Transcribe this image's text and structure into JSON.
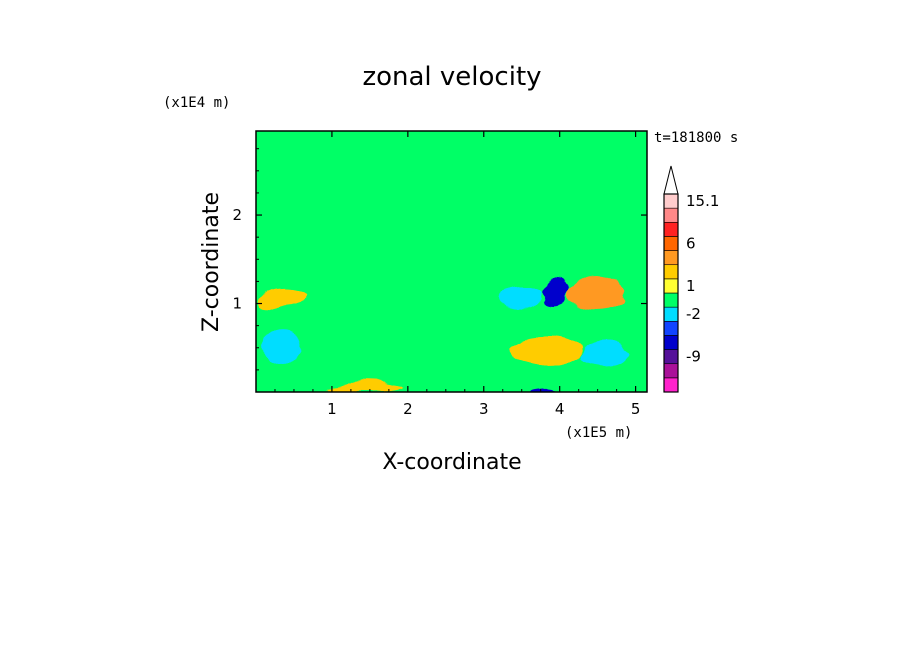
{
  "chart_data": {
    "type": "heatmap",
    "title": "zonal velocity",
    "xlabel": "X-coordinate",
    "ylabel": "Z-coordinate",
    "x_unit": "(x1E5 m)",
    "y_unit": "(x1E4 m)",
    "time_label": "t=181800 s",
    "xlim": [
      0,
      5.15
    ],
    "ylim": [
      0,
      2.95
    ],
    "x_ticks": [
      "1",
      "2",
      "3",
      "4",
      "5"
    ],
    "y_ticks": [
      "1",
      "2"
    ],
    "colorbar": {
      "labels": [
        "15.1",
        "6",
        "1",
        "-2",
        "-9"
      ],
      "colors": [
        "#ff22cc",
        "#aa1199",
        "#551199",
        "#0000cc",
        "#1144ff",
        "#00ddff",
        "#00ff66",
        "#ffff33",
        "#ffcc00",
        "#ff9922",
        "#ff6600",
        "#ff2222",
        "#ff8888",
        "#ffcccc"
      ],
      "extend": "max"
    },
    "features": [
      {
        "type": "band",
        "x": [
          0,
          5.15
        ],
        "z": [
          2.3,
          2.55
        ],
        "value": 0.5
      },
      {
        "type": "band",
        "x": [
          0,
          5.15
        ],
        "z": [
          1.55,
          1.95
        ],
        "value": 0.5
      },
      {
        "type": "band",
        "x": [
          0,
          3.2
        ],
        "z": [
          0.9,
          1.4
        ],
        "value": 0.5
      },
      {
        "type": "band",
        "x": [
          0,
          3.8
        ],
        "z": [
          0.25,
          0.75
        ],
        "value": 0.5
      },
      {
        "type": "patch",
        "x": [
          0.05,
          0.65
        ],
        "z": [
          0.95,
          1.2
        ],
        "value": 3
      },
      {
        "type": "patch",
        "x": [
          0.1,
          0.6
        ],
        "z": [
          0.35,
          0.7
        ],
        "value": -1
      },
      {
        "type": "patch",
        "x": [
          3.2,
          3.75
        ],
        "z": [
          0.95,
          1.2
        ],
        "value": -1
      },
      {
        "type": "patch",
        "x": [
          3.75,
          4.15
        ],
        "z": [
          1.0,
          1.25
        ],
        "value": -6
      },
      {
        "type": "patch",
        "x": [
          4.15,
          4.85
        ],
        "z": [
          0.95,
          1.3
        ],
        "value": 4
      },
      {
        "type": "patch",
        "x": [
          3.35,
          4.3
        ],
        "z": [
          0.3,
          0.6
        ],
        "value": 3.5
      },
      {
        "type": "patch",
        "x": [
          4.3,
          4.9
        ],
        "z": [
          0.3,
          0.55
        ],
        "value": -1.5
      },
      {
        "type": "patch",
        "x": [
          3.6,
          4.05
        ],
        "z": [
          0.0,
          0.08
        ],
        "value": -6
      },
      {
        "type": "patch",
        "x": [
          0.9,
          1.9
        ],
        "z": [
          0.0,
          0.1
        ],
        "value": 3
      },
      {
        "type": "patch",
        "x": [
          3.3,
          5.0
        ],
        "z": [
          1.7,
          2.9
        ],
        "value": 0.8
      }
    ]
  }
}
